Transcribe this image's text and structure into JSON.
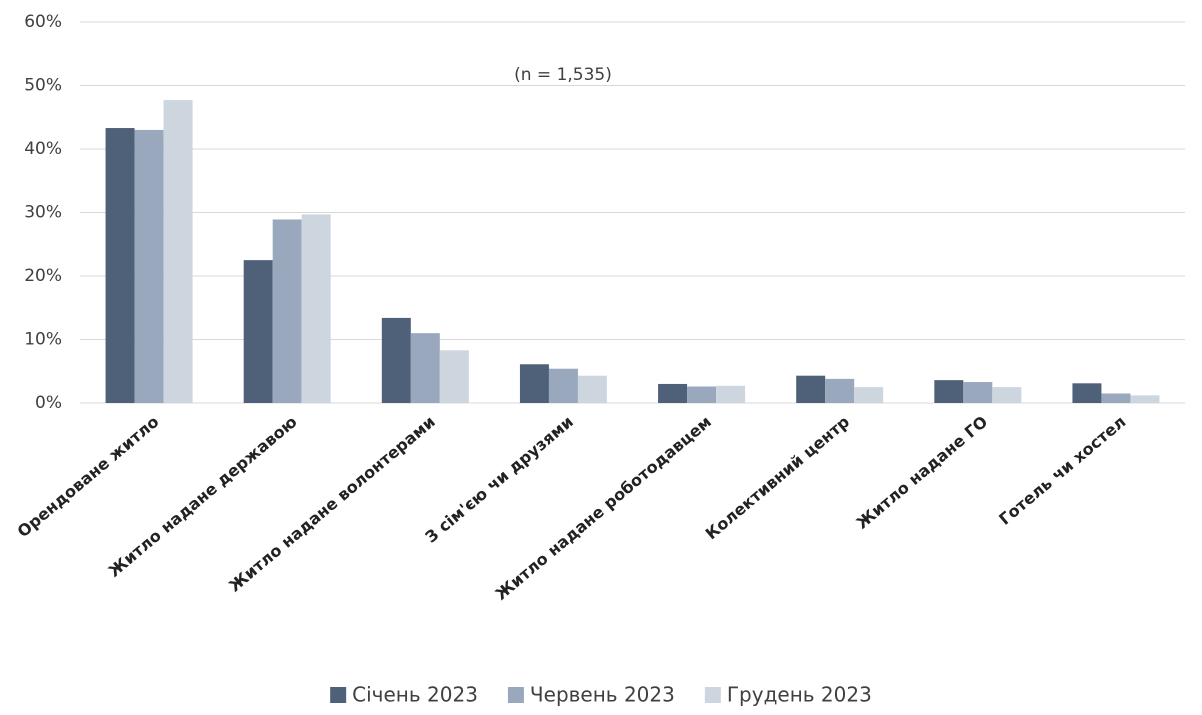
{
  "chart_data": {
    "type": "bar",
    "annotation": "(n = 1,535)",
    "categories": [
      "Орендоване житло",
      "Житло надане державою",
      "Житло надане волонтерами",
      "З сім'єю чи друзями",
      "Житло надане роботодавцем",
      "Колективний центр",
      "Житло надане ГО",
      "Готель чи хостел"
    ],
    "series": [
      {
        "name": "Січень 2023",
        "color": "#4f6079",
        "values": [
          43.3,
          22.5,
          13.4,
          6.1,
          3.0,
          4.3,
          3.6,
          3.1
        ]
      },
      {
        "name": "Червень 2023",
        "color": "#9aa8be",
        "values": [
          43.0,
          28.9,
          11.0,
          5.4,
          2.6,
          3.8,
          3.3,
          1.5
        ]
      },
      {
        "name": "Грудень 2023",
        "color": "#cdd5df",
        "values": [
          47.7,
          29.7,
          8.3,
          4.3,
          2.7,
          2.5,
          2.5,
          1.2
        ]
      }
    ],
    "ylim": [
      0,
      60
    ],
    "yticks": [
      {
        "value": 0,
        "label": "0%"
      },
      {
        "value": 10,
        "label": "10%"
      },
      {
        "value": 20,
        "label": "20%"
      },
      {
        "value": 30,
        "label": "30%"
      },
      {
        "value": 40,
        "label": "40%"
      },
      {
        "value": 50,
        "label": "50%"
      },
      {
        "value": 60,
        "label": "60%"
      }
    ],
    "grid": true
  }
}
